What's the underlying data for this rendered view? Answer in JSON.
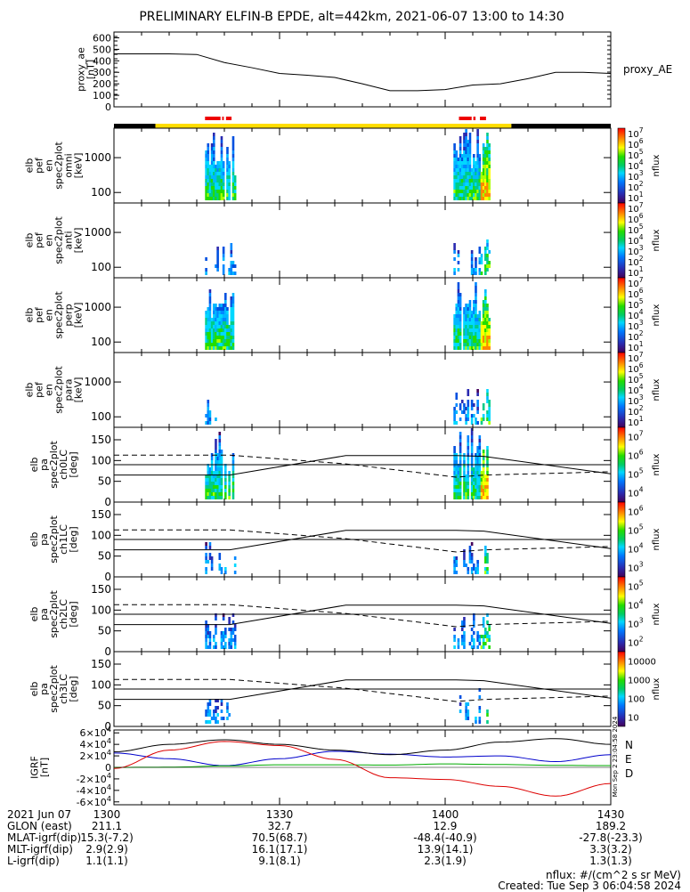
{
  "title": "PRELIMINARY ELFIN-B EPDE, alt=442km, 2021-06-07 13:00 to 14:30",
  "colors": {
    "night_bar": "#000000",
    "day_bar": "#ffdd00",
    "science_bar": "#ee0000",
    "grf_N": "#0000cc",
    "grf_E": "#00aa00",
    "grf_D": "#dd0000",
    "grf_total": "#000000"
  },
  "chart_data": [
    {
      "type": "line",
      "panel": "proxy_ae",
      "ylabel_lines": [
        "proxy_ae",
        "[nT]"
      ],
      "yticks": [
        "0",
        "100",
        "200",
        "300",
        "400",
        "500",
        "600"
      ],
      "ylim": [
        0,
        650
      ],
      "series": [
        {
          "name": "proxy_AE",
          "x": [
            0,
            10,
            15,
            20,
            25,
            30,
            35,
            40,
            45,
            50,
            55,
            60,
            65,
            70,
            75,
            80,
            85,
            90
          ],
          "y": [
            460,
            460,
            455,
            385,
            340,
            290,
            275,
            255,
            200,
            140,
            140,
            150,
            190,
            200,
            245,
            300,
            300,
            290
          ]
        }
      ]
    },
    {
      "type": "heatmap",
      "panel": "spec2plot_omni",
      "ylabel_lines": [
        "elb",
        "pef",
        "en",
        "spec2plot",
        "omni",
        "[keV]"
      ],
      "yticks": [
        "100",
        "1000"
      ],
      "ylim_log": [
        50,
        7000
      ],
      "zlabel": "nflux",
      "zticks": [
        "10^1",
        "10^2",
        "10^3",
        "10^4",
        "10^5",
        "10^6",
        "10^7"
      ]
    },
    {
      "type": "heatmap",
      "panel": "spec2plot_anti",
      "ylabel_lines": [
        "elb",
        "pef",
        "en",
        "spec2plot",
        "anti",
        "[keV]"
      ],
      "yticks": [
        "100",
        "1000"
      ],
      "ylim_log": [
        50,
        7000
      ],
      "zlabel": "nflux",
      "zticks": [
        "10^1",
        "10^2",
        "10^3",
        "10^4",
        "10^5",
        "10^6",
        "10^7"
      ]
    },
    {
      "type": "heatmap",
      "panel": "spec2plot_perp",
      "ylabel_lines": [
        "elb",
        "pef",
        "en",
        "spec2plot",
        "perp",
        "[keV]"
      ],
      "yticks": [
        "100",
        "1000"
      ],
      "ylim_log": [
        50,
        7000
      ],
      "zlabel": "nflux",
      "zticks": [
        "10^1",
        "10^2",
        "10^3",
        "10^4",
        "10^5",
        "10^6",
        "10^7"
      ]
    },
    {
      "type": "heatmap",
      "panel": "spec2plot_para",
      "ylabel_lines": [
        "elb",
        "pef",
        "en",
        "spec2plot",
        "para",
        "[keV]"
      ],
      "yticks": [
        "100",
        "1000"
      ],
      "ylim_log": [
        50,
        7000
      ],
      "zlabel": "nflux",
      "zticks": [
        "10^1",
        "10^2",
        "10^3",
        "10^4",
        "10^5",
        "10^6",
        "10^7"
      ]
    },
    {
      "type": "heatmap",
      "panel": "spec2plot_ch0LC",
      "ylabel_lines": [
        "elb",
        "pa",
        "spec2plot",
        "ch0LC",
        "[deg]"
      ],
      "yticks": [
        "0",
        "50",
        "100",
        "150"
      ],
      "ylim": [
        0,
        180
      ],
      "zlabel": "nflux",
      "zticks": [
        "10^4",
        "10^5",
        "10^6",
        "10^7"
      ]
    },
    {
      "type": "heatmap",
      "panel": "spec2plot_ch1LC",
      "ylabel_lines": [
        "elb",
        "pa",
        "spec2plot",
        "ch1LC",
        "[deg]"
      ],
      "yticks": [
        "0",
        "50",
        "100",
        "150"
      ],
      "ylim": [
        0,
        180
      ],
      "zlabel": "nflux",
      "zticks": [
        "10^3",
        "10^4",
        "10^5",
        "10^6"
      ]
    },
    {
      "type": "heatmap",
      "panel": "spec2plot_ch2LC",
      "ylabel_lines": [
        "elb",
        "pa",
        "spec2plot",
        "ch2LC",
        "[deg]"
      ],
      "yticks": [
        "0",
        "50",
        "100",
        "150"
      ],
      "ylim": [
        0,
        180
      ],
      "zlabel": "nflux",
      "zticks": [
        "10^2",
        "10^3",
        "10^4",
        "10^5"
      ]
    },
    {
      "type": "heatmap",
      "panel": "spec2plot_ch3LC",
      "ylabel_lines": [
        "elb",
        "pa",
        "spec2plot",
        "ch3LC",
        "[deg]"
      ],
      "yticks": [
        "0",
        "50",
        "100",
        "150"
      ],
      "ylim": [
        0,
        180
      ],
      "zlabel": "nflux",
      "zticks": [
        "10",
        "100",
        "1000",
        "10000"
      ]
    },
    {
      "type": "line",
      "panel": "IGRF",
      "ylabel_lines": [
        "IGRF",
        "[nT]"
      ],
      "yticks": [
        "-6x10^4",
        "-4x10^4",
        "-2x10^4",
        "0",
        "2x10^4",
        "4x10^4",
        "6x10^4"
      ],
      "ylim": [
        -65000,
        65000
      ],
      "legend": [
        "N",
        "E",
        "D"
      ],
      "series": [
        {
          "name": "N",
          "x": [
            0,
            10,
            20,
            30,
            40,
            50,
            60,
            70,
            80,
            90
          ],
          "y": [
            25000,
            15000,
            3000,
            15000,
            28000,
            23000,
            18000,
            20000,
            10000,
            22000
          ]
        },
        {
          "name": "E",
          "x": [
            0,
            10,
            20,
            30,
            40,
            50,
            60,
            70,
            80,
            90
          ],
          "y": [
            0,
            300,
            2500,
            4500,
            4500,
            4000,
            6000,
            5000,
            3500,
            3000
          ]
        },
        {
          "name": "D",
          "x": [
            0,
            10,
            20,
            30,
            40,
            50,
            60,
            70,
            80,
            90
          ],
          "y": [
            -2000,
            30000,
            45000,
            38000,
            14000,
            -18000,
            -21000,
            -33000,
            -50000,
            -28000
          ]
        },
        {
          "x": [
            0,
            10,
            20,
            30,
            40,
            50,
            60,
            70,
            80,
            90
          ],
          "y": [
            27000,
            40000,
            48000,
            40000,
            30000,
            22000,
            30000,
            44000,
            50000,
            40000
          ]
        }
      ]
    }
  ],
  "time_axis": {
    "label": "2021 Jun 07",
    "ticks": [
      "1300",
      "1330",
      "1400",
      "1430"
    ]
  },
  "orbit_table": {
    "rows": [
      {
        "label": "GLON (east)",
        "values": [
          "211.1",
          "32.7",
          "12.9",
          "189.2"
        ]
      },
      {
        "label": "MLAT-igrf(dip)",
        "values": [
          "15.3(-7.2)",
          "70.5(68.7)",
          "-48.4(-40.9)",
          "-27.8(-23.3)"
        ]
      },
      {
        "label": "MLT-igrf(dip)",
        "values": [
          "2.9(2.9)",
          "16.1(17.1)",
          "13.9(14.1)",
          "3.3(3.2)"
        ]
      },
      {
        "label": "L-igrf(dip)",
        "values": [
          "1.1(1.1)",
          "9.1(8.1)",
          "2.3(1.9)",
          "1.3(1.3)"
        ]
      }
    ]
  },
  "footer": {
    "units": "nflux: #/(cm^2 s sr MeV)",
    "created": "Created: Tue Sep  3 06:04:58 2024"
  },
  "side_stamp": "Mon Sep  2 23:04:58 2024"
}
